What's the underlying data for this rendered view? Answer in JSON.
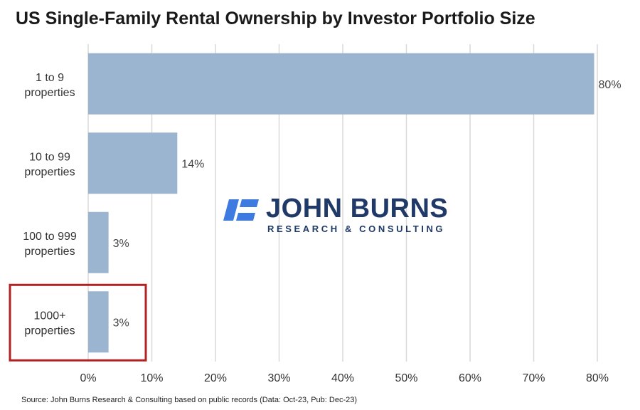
{
  "title": "US Single-Family Rental Ownership by Investor Portfolio Size",
  "source": "Source: John Burns Research & Consulting based on public records (Data: Oct-23, Pub: Dec-23)",
  "logo": {
    "name": "JOHN BURNS",
    "subtitle": "RESEARCH & CONSULTING",
    "icon": "john-burns-logo-mark"
  },
  "colors": {
    "bar": "#9bb5d0",
    "grid": "#d9d9d9",
    "highlight": "#b22222",
    "logo": "#1f3a68",
    "logo_accent": "#3d7be0"
  },
  "chart_data": {
    "type": "bar",
    "orientation": "horizontal",
    "categories": [
      [
        "1 to 9",
        "properties"
      ],
      [
        "10 to 99",
        "properties"
      ],
      [
        "100 to 999",
        "properties"
      ],
      [
        "1000+",
        "properties"
      ]
    ],
    "values": [
      79.5,
      14,
      3.2,
      3.2
    ],
    "value_labels": [
      "80%",
      "14%",
      "3%",
      "3%"
    ],
    "xlim": [
      0,
      80
    ],
    "x_ticks": [
      0,
      10,
      20,
      30,
      40,
      50,
      60,
      70,
      80
    ],
    "x_tick_labels": [
      "0%",
      "10%",
      "20%",
      "30%",
      "40%",
      "50%",
      "60%",
      "70%",
      "80%"
    ],
    "grid": true,
    "highlighted_category": "1000+"
  }
}
